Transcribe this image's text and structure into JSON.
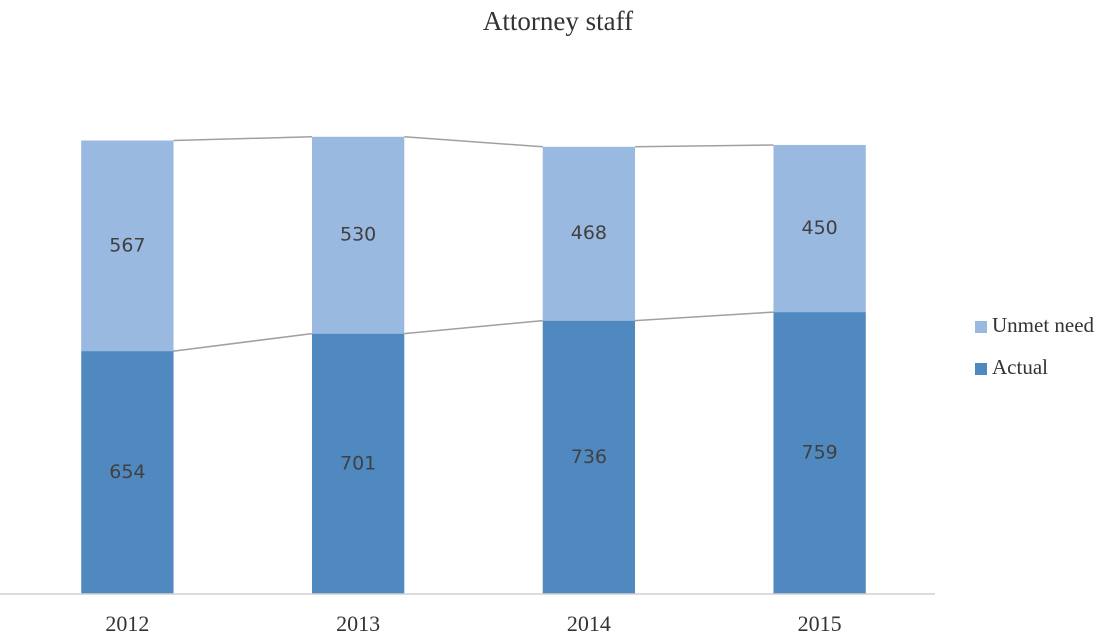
{
  "chart_data": {
    "type": "stacked_bar",
    "title": "Attorney staff",
    "categories": [
      "2012",
      "2013",
      "2014",
      "2015"
    ],
    "series": [
      {
        "name": "Actual",
        "color": "#5089c0",
        "values": [
          654,
          701,
          736,
          759
        ]
      },
      {
        "name": "Unmet need",
        "color": "#9ab9e0",
        "values": [
          567,
          530,
          468,
          450
        ]
      }
    ],
    "ylim": [
      0,
      1400
    ],
    "series_lines": true,
    "legend": "right"
  }
}
